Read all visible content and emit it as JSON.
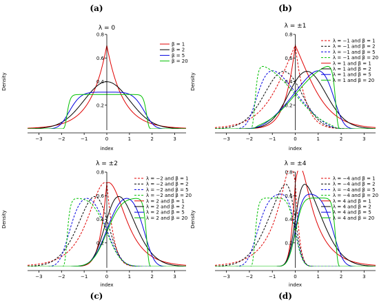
{
  "panel_labels": [
    "(a)",
    "(b)",
    "(c)",
    "(d)"
  ],
  "chart_data": [
    {
      "type": "line",
      "title": "λ = 0",
      "xlabel": "index",
      "ylabel": "Density",
      "xlim": [
        -3.5,
        3.5
      ],
      "ylim": [
        0,
        0.8
      ],
      "xticks": [
        -3,
        -2,
        -1,
        0,
        1,
        2,
        3
      ],
      "yticks": [
        0.2,
        0.4,
        0.6,
        0.8
      ],
      "legend_position": "top-right",
      "legend_columns": "single",
      "grid": false,
      "series": [
        {
          "name": "β = 1",
          "lambda": 0,
          "beta": 1,
          "color": "#e00000",
          "dash": "solid"
        },
        {
          "name": "β = 2",
          "lambda": 0,
          "beta": 2,
          "color": "#000000",
          "dash": "solid"
        },
        {
          "name": "β = 5",
          "lambda": 0,
          "beta": 5,
          "color": "#0000e0",
          "dash": "solid"
        },
        {
          "name": "β = 20",
          "lambda": 0,
          "beta": 20,
          "color": "#00c000",
          "dash": "solid"
        }
      ]
    },
    {
      "type": "line",
      "title": "λ = ±1",
      "xlabel": "index",
      "ylabel": "Density",
      "xlim": [
        -3.5,
        3.5
      ],
      "ylim": [
        0,
        0.8
      ],
      "xticks": [
        -3,
        -2,
        -1,
        0,
        1,
        2,
        3
      ],
      "yticks": [
        0.2,
        0.4,
        0.6,
        0.8
      ],
      "legend_position": "top-right",
      "grid": false,
      "series": [
        {
          "name": "λ = −1 and β = 1",
          "lambda": -1,
          "beta": 1,
          "color": "#e00000",
          "dash": "dashed"
        },
        {
          "name": "λ = −1 and β = 2",
          "lambda": -1,
          "beta": 2,
          "color": "#000000",
          "dash": "dashed"
        },
        {
          "name": "λ = −1 and β = 5",
          "lambda": -1,
          "beta": 5,
          "color": "#0000e0",
          "dash": "dashed"
        },
        {
          "name": "λ = −1 and β = 20",
          "lambda": -1,
          "beta": 20,
          "color": "#00c000",
          "dash": "dashed"
        },
        {
          "name": "λ = 1 and β = 1",
          "lambda": 1,
          "beta": 1,
          "color": "#e00000",
          "dash": "solid"
        },
        {
          "name": "λ = 1 and β = 2",
          "lambda": 1,
          "beta": 2,
          "color": "#000000",
          "dash": "solid"
        },
        {
          "name": "λ = 1 and β = 5",
          "lambda": 1,
          "beta": 5,
          "color": "#0000e0",
          "dash": "solid"
        },
        {
          "name": "λ = 1 and β = 20",
          "lambda": 1,
          "beta": 20,
          "color": "#00c000",
          "dash": "solid"
        }
      ]
    },
    {
      "type": "line",
      "title": "λ = ±2",
      "xlabel": "index",
      "ylabel": "Density",
      "xlim": [
        -3.5,
        3.5
      ],
      "ylim": [
        0,
        0.8
      ],
      "xticks": [
        -3,
        -2,
        -1,
        0,
        1,
        2,
        3
      ],
      "yticks": [
        0.2,
        0.4,
        0.6,
        0.8
      ],
      "legend_position": "top-right",
      "grid": false,
      "series": [
        {
          "name": "λ = −2 and β = 1",
          "lambda": -2,
          "beta": 1,
          "color": "#e00000",
          "dash": "dashed"
        },
        {
          "name": "λ = −2 and β = 2",
          "lambda": -2,
          "beta": 2,
          "color": "#000000",
          "dash": "dashed"
        },
        {
          "name": "λ = −2 and β = 5",
          "lambda": -2,
          "beta": 5,
          "color": "#0000e0",
          "dash": "dashed"
        },
        {
          "name": "λ = −2 and β = 20",
          "lambda": -2,
          "beta": 20,
          "color": "#00c000",
          "dash": "dashed"
        },
        {
          "name": "λ = 2 and β = 1",
          "lambda": 2,
          "beta": 1,
          "color": "#e00000",
          "dash": "solid"
        },
        {
          "name": "λ = 2 and β = 2",
          "lambda": 2,
          "beta": 2,
          "color": "#000000",
          "dash": "solid"
        },
        {
          "name": "λ = 2 and β = 5",
          "lambda": 2,
          "beta": 5,
          "color": "#0000e0",
          "dash": "solid"
        },
        {
          "name": "λ = 2 and β = 20",
          "lambda": 2,
          "beta": 20,
          "color": "#00c000",
          "dash": "solid"
        }
      ]
    },
    {
      "type": "line",
      "title": "λ = ±4",
      "xlabel": "index",
      "ylabel": "Density",
      "xlim": [
        -3.5,
        3.5
      ],
      "ylim": [
        0,
        0.8
      ],
      "xticks": [
        -3,
        -2,
        -1,
        0,
        1,
        2,
        3
      ],
      "yticks": [
        0.2,
        0.4,
        0.6,
        0.8
      ],
      "legend_position": "top-right",
      "grid": false,
      "series": [
        {
          "name": "λ = −4 and β = 1",
          "lambda": -4,
          "beta": 1,
          "color": "#e00000",
          "dash": "dashed"
        },
        {
          "name": "λ = −4 and β = 2",
          "lambda": -4,
          "beta": 2,
          "color": "#000000",
          "dash": "dashed"
        },
        {
          "name": "λ = −4 and β = 5",
          "lambda": -4,
          "beta": 5,
          "color": "#0000e0",
          "dash": "dashed"
        },
        {
          "name": "λ = −4 and β = 20",
          "lambda": -4,
          "beta": 20,
          "color": "#00c000",
          "dash": "dashed"
        },
        {
          "name": "λ = 4 and β = 1",
          "lambda": 4,
          "beta": 1,
          "color": "#e00000",
          "dash": "solid"
        },
        {
          "name": "λ = 4 and β = 2",
          "lambda": 4,
          "beta": 2,
          "color": "#000000",
          "dash": "solid"
        },
        {
          "name": "λ = 4 and β = 5",
          "lambda": 4,
          "beta": 5,
          "color": "#0000e0",
          "dash": "solid"
        },
        {
          "name": "λ = 4 and β = 20",
          "lambda": 4,
          "beta": 20,
          "color": "#00c000",
          "dash": "solid"
        }
      ]
    }
  ]
}
